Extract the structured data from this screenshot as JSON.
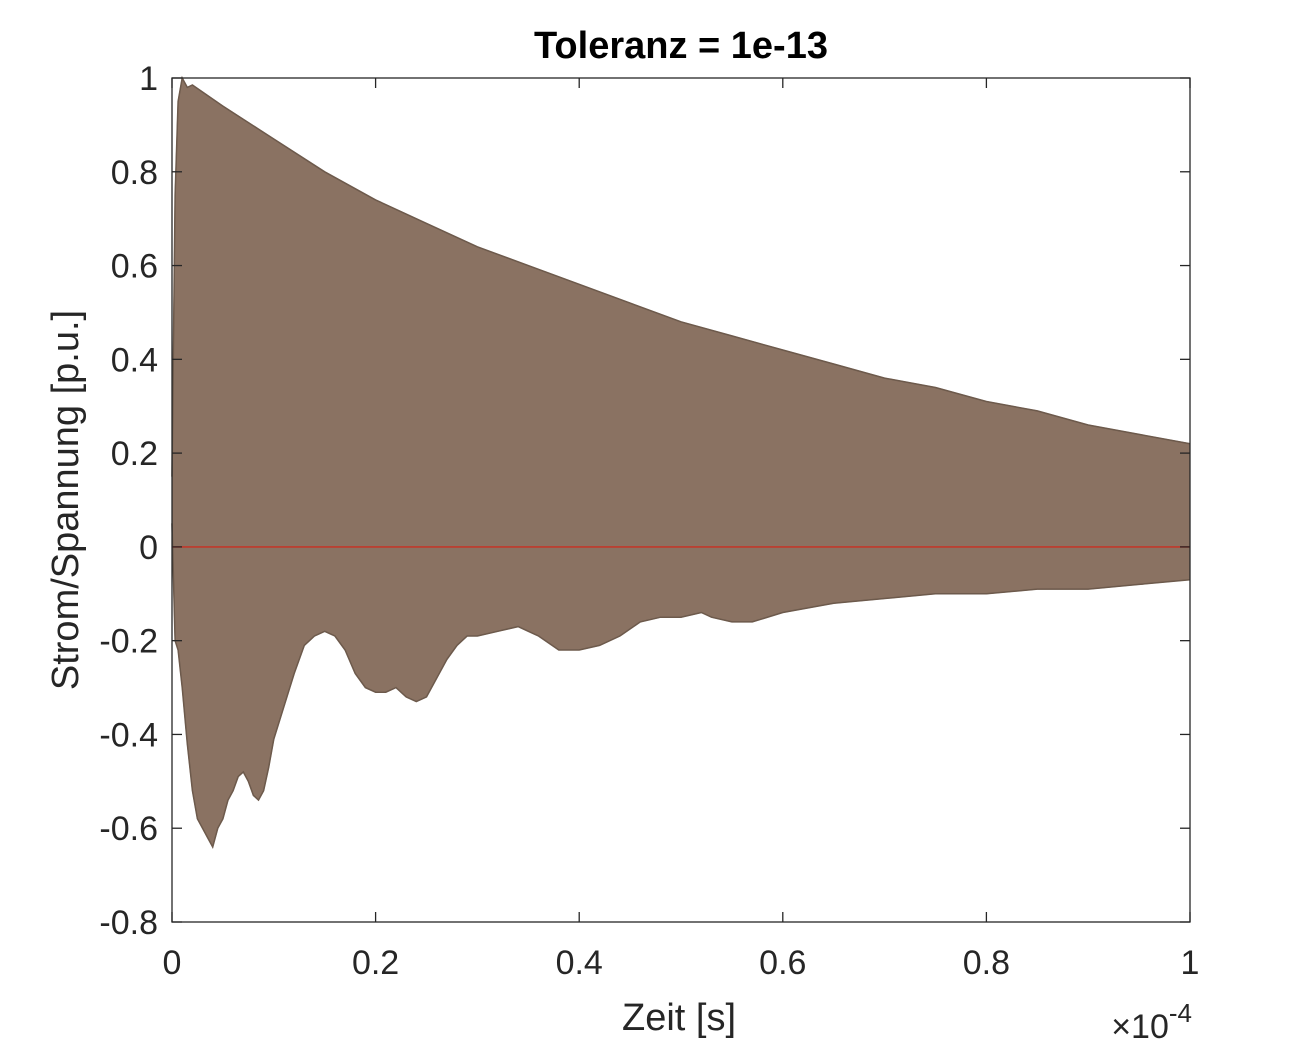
{
  "chart_data": {
    "type": "line",
    "title": "Toleranz = 1e-13",
    "xlabel": "Zeit [s]",
    "ylabel": "Strom/Spannung [p.u.]",
    "x_exponent_label": {
      "prefix": "×10",
      "exponent": "-4"
    },
    "xlim": [
      0,
      1
    ],
    "ylim": [
      -0.8,
      1
    ],
    "xticks": [
      0,
      0.2,
      0.4,
      0.6,
      0.8,
      1
    ],
    "xtick_labels": [
      "0",
      "0.2",
      "0.4",
      "0.6",
      "0.8",
      "1"
    ],
    "yticks": [
      -0.8,
      -0.6,
      -0.4,
      -0.2,
      0,
      0.2,
      0.4,
      0.6,
      0.8,
      1
    ],
    "ytick_labels": [
      "-0.8",
      "-0.6",
      "-0.4",
      "-0.2",
      "0",
      "0.2",
      "0.4",
      "0.6",
      "0.8",
      "1"
    ],
    "grid": false,
    "colors": {
      "band_fill": "#8a7262",
      "band_stroke": "#6d5a4c",
      "zero_line": "#c0392b",
      "axes": "#262626"
    },
    "series": [
      {
        "role": "upper-envelope",
        "x": [
          0,
          0.003,
          0.006,
          0.01,
          0.015,
          0.02,
          0.05,
          0.1,
          0.15,
          0.2,
          0.25,
          0.3,
          0.35,
          0.4,
          0.45,
          0.5,
          0.55,
          0.6,
          0.65,
          0.7,
          0.75,
          0.8,
          0.85,
          0.9,
          0.95,
          1.0
        ],
        "y": [
          0.15,
          0.75,
          0.95,
          1.0,
          0.98,
          0.985,
          0.94,
          0.87,
          0.8,
          0.74,
          0.69,
          0.64,
          0.6,
          0.56,
          0.52,
          0.48,
          0.45,
          0.42,
          0.39,
          0.36,
          0.34,
          0.31,
          0.29,
          0.26,
          0.24,
          0.22
        ]
      },
      {
        "role": "lower-envelope",
        "x": [
          0,
          0.003,
          0.006,
          0.01,
          0.015,
          0.02,
          0.025,
          0.03,
          0.035,
          0.04,
          0.045,
          0.05,
          0.055,
          0.06,
          0.065,
          0.07,
          0.075,
          0.08,
          0.085,
          0.09,
          0.095,
          0.1,
          0.11,
          0.12,
          0.13,
          0.14,
          0.15,
          0.16,
          0.17,
          0.18,
          0.19,
          0.2,
          0.21,
          0.22,
          0.23,
          0.24,
          0.25,
          0.26,
          0.27,
          0.28,
          0.29,
          0.3,
          0.32,
          0.34,
          0.35,
          0.36,
          0.38,
          0.4,
          0.42,
          0.44,
          0.46,
          0.48,
          0.5,
          0.52,
          0.53,
          0.55,
          0.57,
          0.6,
          0.65,
          0.7,
          0.75,
          0.8,
          0.85,
          0.9,
          0.95,
          1.0
        ],
        "y": [
          0.05,
          -0.2,
          -0.22,
          -0.3,
          -0.42,
          -0.52,
          -0.58,
          -0.6,
          -0.62,
          -0.64,
          -0.6,
          -0.58,
          -0.54,
          -0.52,
          -0.49,
          -0.48,
          -0.5,
          -0.53,
          -0.54,
          -0.52,
          -0.47,
          -0.41,
          -0.34,
          -0.27,
          -0.21,
          -0.19,
          -0.18,
          -0.19,
          -0.22,
          -0.27,
          -0.3,
          -0.31,
          -0.31,
          -0.3,
          -0.32,
          -0.33,
          -0.32,
          -0.28,
          -0.24,
          -0.21,
          -0.19,
          -0.19,
          -0.18,
          -0.17,
          -0.18,
          -0.19,
          -0.22,
          -0.22,
          -0.21,
          -0.19,
          -0.16,
          -0.15,
          -0.15,
          -0.14,
          -0.15,
          -0.16,
          -0.16,
          -0.14,
          -0.12,
          -0.11,
          -0.1,
          -0.1,
          -0.09,
          -0.09,
          -0.08,
          -0.07
        ]
      },
      {
        "role": "zero-line",
        "x": [
          0,
          1
        ],
        "y": [
          0,
          0
        ]
      }
    ]
  }
}
